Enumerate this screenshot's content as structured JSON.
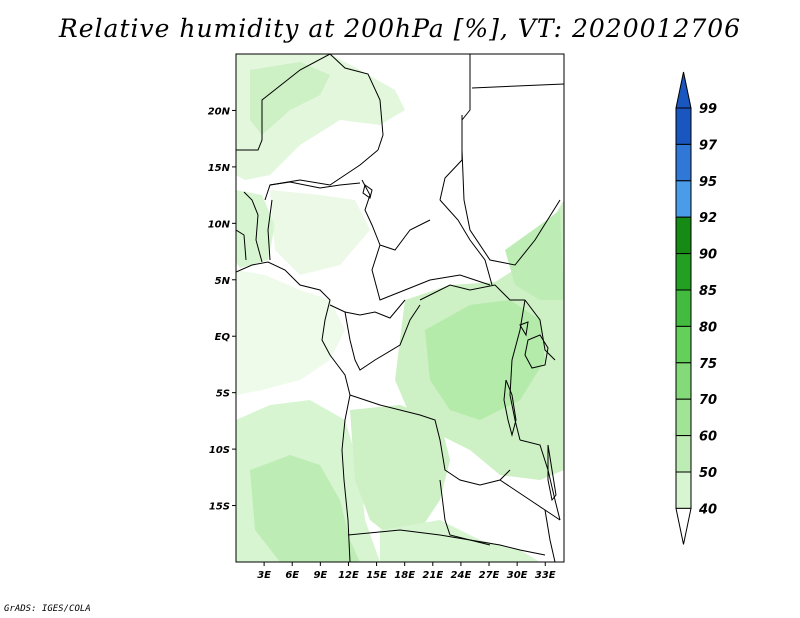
{
  "title": "Relative humidity at 200hPa [%], VT: 2020012706",
  "credit": "GrADS: IGES/COLA",
  "map": {
    "lat_labels": [
      "20N",
      "15N",
      "10N",
      "5N",
      "EQ",
      "5S",
      "10S",
      "15S"
    ],
    "lat_values": [
      20,
      15,
      10,
      5,
      0,
      -5,
      -10,
      -15
    ],
    "lon_labels": [
      "3E",
      "6E",
      "9E",
      "12E",
      "15E",
      "18E",
      "21E",
      "24E",
      "27E",
      "30E",
      "33E"
    ],
    "lon_values": [
      3,
      6,
      9,
      12,
      15,
      18,
      21,
      24,
      27,
      30,
      33
    ],
    "extent": {
      "lon_min": 0,
      "lon_max": 35,
      "lat_min": -20,
      "lat_max": 25
    }
  },
  "colorbar": {
    "labels": [
      "40",
      "50",
      "60",
      "70",
      "75",
      "80",
      "85",
      "90",
      "92",
      "95",
      "97",
      "99"
    ],
    "colors": [
      "#f0fcee",
      "#d8f5d2",
      "#bdedb5",
      "#a2e495",
      "#84da78",
      "#63d05a",
      "#42bb3e",
      "#239f22",
      "#158a15",
      "#4a9be8",
      "#2f78d8",
      "#1a56c0"
    ],
    "below_color": "#ffffff",
    "above_color": "#1a56c0"
  }
}
